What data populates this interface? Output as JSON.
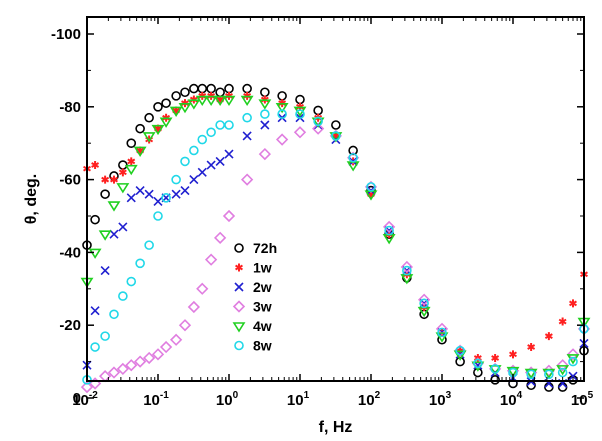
{
  "chart_data": {
    "type": "scatter",
    "xlabel": "f, Hz",
    "ylabel": "θ, deg.",
    "x_scale": "log",
    "xlim": [
      0.01,
      100000
    ],
    "ylim": [
      0,
      -100
    ],
    "y_inverted": true,
    "x_ticks": [
      {
        "value": 0.01,
        "base": "10",
        "exp": "-2"
      },
      {
        "value": 0.1,
        "base": "10",
        "exp": "-1"
      },
      {
        "value": 1,
        "base": "10",
        "exp": "0"
      },
      {
        "value": 10,
        "base": "10",
        "exp": "1"
      },
      {
        "value": 100,
        "base": "10",
        "exp": "2"
      },
      {
        "value": 1000,
        "base": "10",
        "exp": "3"
      },
      {
        "value": 10000,
        "base": "10",
        "exp": "4"
      },
      {
        "value": 100000,
        "base": "10",
        "exp": "5"
      }
    ],
    "y_ticks": [
      0,
      -20,
      -40,
      -60,
      -80,
      -100
    ],
    "legend_position": "lower-left (inside plot)",
    "grid": false,
    "series": [
      {
        "name": "72h",
        "marker": "circle-open",
        "color": "#000000",
        "x": [
          0.01,
          0.013,
          0.018,
          0.024,
          0.032,
          0.042,
          0.056,
          0.075,
          0.1,
          0.13,
          0.18,
          0.24,
          0.32,
          0.42,
          0.56,
          0.75,
          1,
          1.8,
          3.2,
          5.6,
          10,
          18,
          32,
          56,
          100,
          180,
          320,
          560,
          1000,
          1800,
          3200,
          5600,
          10000,
          18000,
          32000,
          50000,
          70000,
          100000
        ],
        "y": [
          -42,
          -49,
          -56,
          -61,
          -64,
          -70,
          -74,
          -77,
          -80,
          -81,
          -83,
          -84,
          -85,
          -85,
          -85,
          -84,
          -85,
          -85,
          -84,
          -83,
          -82,
          -79,
          -75,
          -68,
          -57,
          -45,
          -33,
          -23,
          -16,
          -10,
          -7,
          -5,
          -4,
          -3.5,
          -3,
          -3,
          -5,
          -13
        ]
      },
      {
        "name": "1w",
        "marker": "asterisk",
        "color": "#ff2020",
        "x": [
          0.01,
          0.013,
          0.018,
          0.024,
          0.032,
          0.042,
          0.056,
          0.075,
          0.1,
          0.13,
          0.18,
          0.24,
          0.32,
          0.42,
          0.56,
          0.75,
          1,
          1.8,
          3.2,
          5.6,
          10,
          18,
          32,
          56,
          100,
          180,
          320,
          560,
          1000,
          1800,
          3200,
          5600,
          10000,
          18000,
          32000,
          50000,
          70000,
          100000
        ],
        "y": [
          -63,
          -64,
          -60,
          -60,
          -62,
          -65,
          -68,
          -71,
          -74,
          -77,
          -79,
          -81,
          -82,
          -83,
          -83,
          -82,
          -83,
          -83,
          -82,
          -81,
          -80,
          -77,
          -72,
          -65,
          -56,
          -45,
          -34,
          -25,
          -18,
          -13,
          -11,
          -11,
          -12,
          -14,
          -17,
          -21,
          -26,
          -34
        ]
      },
      {
        "name": "2w",
        "marker": "x",
        "color": "#2020d0",
        "x": [
          0.01,
          0.013,
          0.018,
          0.024,
          0.032,
          0.042,
          0.056,
          0.075,
          0.1,
          0.13,
          0.18,
          0.24,
          0.32,
          0.42,
          0.56,
          0.75,
          1,
          1.8,
          3.2,
          5.6,
          10,
          18,
          32,
          56,
          100,
          180,
          320,
          560,
          1000,
          1800,
          3200,
          5600,
          10000,
          18000,
          32000,
          50000,
          70000,
          100000
        ],
        "y": [
          -9,
          -24,
          -35,
          -45,
          -47,
          -55,
          -57,
          -56,
          -54,
          -55,
          -56,
          -57,
          -60,
          -62,
          -64,
          -65,
          -67,
          -72,
          -75,
          -77,
          -77,
          -75,
          -71,
          -65,
          -57,
          -46,
          -35,
          -26,
          -18,
          -12,
          -9,
          -7,
          -5.5,
          -4.5,
          -4,
          -4,
          -6,
          -15
        ]
      },
      {
        "name": "3w",
        "marker": "diamond-open",
        "color": "#e07ee0",
        "x": [
          0.01,
          0.013,
          0.018,
          0.024,
          0.032,
          0.042,
          0.056,
          0.075,
          0.1,
          0.13,
          0.18,
          0.24,
          0.32,
          0.42,
          0.56,
          0.75,
          1,
          1.8,
          3.2,
          5.6,
          10,
          18,
          32,
          56,
          100,
          180,
          320,
          560,
          1000,
          1800,
          3200,
          5600,
          10000,
          18000,
          32000,
          50000,
          70000,
          100000
        ],
        "y": [
          -3,
          -4,
          -6,
          -7,
          -8,
          -9,
          -10,
          -11,
          -12,
          -14,
          -16,
          -20,
          -25,
          -30,
          -38,
          -44,
          -50,
          -60,
          -67,
          -71,
          -73,
          -74,
          -72,
          -66,
          -58,
          -47,
          -36,
          -27,
          -19,
          -13,
          -9.5,
          -8,
          -7.5,
          -7,
          -7.5,
          -9,
          -12,
          -19
        ]
      },
      {
        "name": "4w",
        "marker": "triangle-down",
        "color": "#20d020",
        "x": [
          0.01,
          0.013,
          0.018,
          0.024,
          0.032,
          0.042,
          0.056,
          0.075,
          0.1,
          0.13,
          0.18,
          0.24,
          0.32,
          0.42,
          0.56,
          0.75,
          1,
          1.8,
          3.2,
          5.6,
          10,
          18,
          32,
          56,
          100,
          180,
          320,
          560,
          1000,
          1800,
          3200,
          5600,
          10000,
          18000,
          32000,
          50000,
          70000,
          100000
        ],
        "y": [
          -32,
          -40,
          -45,
          -53,
          -58,
          -63,
          -68,
          -72,
          -74,
          -76,
          -79,
          -80,
          -81,
          -82,
          -82,
          -82,
          -82,
          -82,
          -81,
          -80,
          -79,
          -76,
          -72,
          -64,
          -56,
          -44,
          -33,
          -24,
          -17,
          -12,
          -9,
          -8,
          -7.5,
          -7,
          -7,
          -8,
          -11,
          -21
        ]
      },
      {
        "name": "8w",
        "marker": "circle-open",
        "color": "#20d8e8",
        "x": [
          0.01,
          0.013,
          0.018,
          0.024,
          0.032,
          0.042,
          0.056,
          0.075,
          0.1,
          0.13,
          0.18,
          0.24,
          0.32,
          0.42,
          0.56,
          0.75,
          1,
          1.8,
          3.2,
          5.6,
          10,
          18,
          32,
          56,
          100,
          180,
          320,
          560,
          1000,
          1800,
          3200,
          5600,
          10000,
          18000,
          32000,
          50000,
          70000,
          100000
        ],
        "y": [
          -5,
          -14,
          -17,
          -23,
          -28,
          -32,
          -37,
          -42,
          -50,
          -55,
          -60,
          -65,
          -68,
          -71,
          -73,
          -75,
          -75,
          -77,
          -78,
          -78,
          -78,
          -76,
          -72,
          -66,
          -58,
          -46,
          -35,
          -26,
          -18,
          -13,
          -9.5,
          -8,
          -7,
          -6.5,
          -6.5,
          -7,
          -10,
          -19
        ]
      }
    ]
  }
}
